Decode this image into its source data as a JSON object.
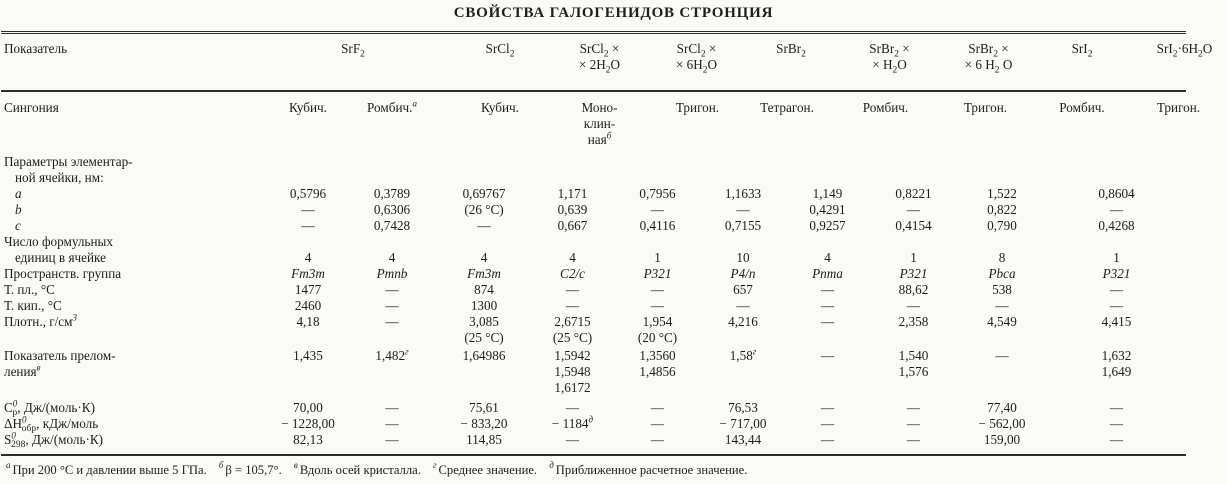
{
  "page": {
    "title": "СВОЙСТВА ГАЛОГЕНИДОВ СТРОНЦИЯ",
    "paper_color": "#fafaf6",
    "ink_color": "#1e1e1e",
    "rule_color": "#2e2c28"
  },
  "table": {
    "indicator_header": "Показатель",
    "column_headers": [
      {
        "label": "SrF_{2}",
        "colspan": 2
      },
      {
        "label": "SrCl_{2}",
        "colspan": 1
      },
      {
        "label": "SrCl_{2} ×\n× 2H_{2}O",
        "colspan": 1
      },
      {
        "label": "SrCl_{2} ×\n× 6H_{2}O",
        "colspan": 1
      },
      {
        "label": "SrBr_{2}",
        "colspan": 1
      },
      {
        "label": "SrBr_{2} ×\n× H_{2}O",
        "colspan": 1
      },
      {
        "label": "SrBr_{2} ×\n× 6 H_{2} O",
        "colspan": 1
      },
      {
        "label": "SrI_{2}",
        "colspan": 1
      },
      {
        "label": "SrI_{2}·6H_{2}O",
        "colspan": 1
      }
    ],
    "rows": [
      {
        "label": "Сингония",
        "cls": "pt8 r-sing",
        "cells": [
          "Кубич.",
          "Ромбич.^{а}",
          "Кубич.",
          "Моно-\nклин-\nная^{б}",
          "Тригон.",
          "Тетрагон.",
          "Ромбич.",
          "Тригон.",
          "Ромбич.",
          "Тригон."
        ]
      },
      {
        "label": "Параметры элементар-\nной ячейки, нм:",
        "cls": "pt6",
        "label_class": "hang",
        "cells": []
      },
      {
        "label": "a",
        "label_class": "indent ital",
        "cells": [
          "0,5796",
          "0,3789",
          "0,69767",
          "1,171",
          "0,7956",
          "1,1633",
          "1,149",
          "0,8221",
          "1,522",
          "0,8604"
        ]
      },
      {
        "label": "b",
        "label_class": "indent ital",
        "cells": [
          "—",
          "0,6306",
          "(26 °С)",
          "0,639",
          "—",
          "—",
          "0,4291",
          "—",
          "0,822",
          "—"
        ]
      },
      {
        "label": "c",
        "label_class": "indent ital",
        "cells": [
          "—",
          "0,7428",
          "—",
          "0,667",
          "0,4116",
          "0,7155",
          "0,9257",
          "0,4154",
          "0,790",
          "0,4268"
        ]
      },
      {
        "label": "Число формульных\nединиц в ячейке",
        "cls": "vbottom",
        "label_class": "hang",
        "cells": [
          "4",
          "4",
          "4",
          "4",
          "1",
          "10",
          "4",
          "1",
          "8",
          "1"
        ]
      },
      {
        "label": "Пространств. группа",
        "cells_italic": true,
        "cells": [
          "Fm3m",
          "Pmnb",
          "Fm3m",
          "C2/c",
          "P321",
          "P4/n",
          "Pnma",
          "P321",
          "Pbca",
          "P321"
        ]
      },
      {
        "label": "Т. пл., °С",
        "cells": [
          "1477",
          "—",
          "874",
          "—",
          "—",
          "657",
          "—",
          "88,62",
          "538",
          "—"
        ]
      },
      {
        "label": "Т. кип., °С",
        "cells": [
          "2460",
          "—",
          "1300",
          "—",
          "—",
          "—",
          "—",
          "—",
          "—",
          "—"
        ]
      },
      {
        "label": "Плотн., г/см^{3}",
        "cells": [
          "4,18",
          "—",
          "3,085\n(25 °С)",
          "2,6715\n(25 °С)",
          "1,954\n(20 °С)",
          "4,216",
          "—",
          "2,358",
          "4,549",
          "4,415"
        ]
      },
      {
        "label": "Показатель прелом-\nления^{в}",
        "cls": "pt2",
        "cells": [
          "1,435",
          "1,482^{г}",
          "1,64986",
          "1,5942\n1,5948\n1,6172",
          "1,3560\n1,4856",
          "1,58^{г}",
          "—",
          "1,540\n1,576",
          "—",
          "1,632\n1,649"
        ]
      },
      {
        "label": "C^{0}_{р}, Дж/(моль·К)",
        "cls": "pt4",
        "cells": [
          "70,00",
          "—",
          "75,61",
          "—",
          "—",
          "76,53",
          "—",
          "—",
          "77,40",
          "—"
        ]
      },
      {
        "label": "ΔH^{0}_{обр}, кДж/моль",
        "cells": [
          "− 1228,00",
          "—",
          "− 833,20",
          "− 1184^{д}",
          "—",
          "− 717,00",
          "—",
          "—",
          "− 562,00",
          "—"
        ]
      },
      {
        "label": "S^{0}_{298}, Дж/(моль·К)",
        "cls": "pb6",
        "cells": [
          "82,13",
          "—",
          "114,85",
          "—",
          "—",
          "143,44",
          "—",
          "—",
          "159,00",
          "—"
        ]
      }
    ]
  },
  "footnotes": [
    {
      "mark": "а",
      "text": "При 200 °С и давлении выше 5 ГПа."
    },
    {
      "mark": "б",
      "text": "β = 105,7°."
    },
    {
      "mark": "в",
      "text": "Вдоль осей кристалла."
    },
    {
      "mark": "г",
      "text": "Среднее значение."
    },
    {
      "mark": "д",
      "text": "Приближенное расчетное значение."
    }
  ]
}
